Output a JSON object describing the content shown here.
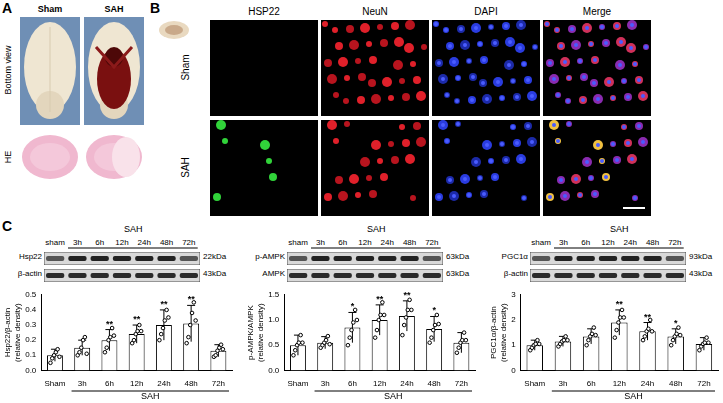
{
  "panels": {
    "A": {
      "label": "A",
      "columns": [
        "Sham",
        "SAH"
      ],
      "rows": [
        "Bottom view",
        "HE"
      ]
    },
    "B": {
      "label": "B",
      "columns": [
        "HSP22",
        "NeuN",
        "DAPI",
        "Merge"
      ],
      "rows": [
        "Sham",
        "SAH"
      ]
    },
    "C": {
      "label": "C",
      "blots": [
        {
          "lanes": [
            "sham",
            "3h",
            "6h",
            "12h",
            "24h",
            "48h",
            "72h"
          ],
          "group_label": "SAH",
          "bands": [
            {
              "name": "Hsp22",
              "size": "22kDa"
            },
            {
              "name": "β-actin",
              "size": "43kDa"
            }
          ]
        },
        {
          "lanes": [
            "sham",
            "3h",
            "6h",
            "12h",
            "24h",
            "48h",
            "72h"
          ],
          "group_label": "SAH",
          "bands": [
            {
              "name": "p-AMPK",
              "size": "63kDa"
            },
            {
              "name": "AMPK",
              "size": "63kDa"
            }
          ]
        },
        {
          "lanes": [
            "sham",
            "3h",
            "6h",
            "12h",
            "24h",
            "48h",
            "72h"
          ],
          "group_label": "SAH",
          "bands": [
            {
              "name": "PGC1α",
              "size": "93kDa"
            },
            {
              "name": "β-actin",
              "size": "43kDa"
            }
          ]
        }
      ]
    }
  },
  "chart_data": [
    {
      "type": "bar",
      "categories": [
        "Sham",
        "3h",
        "6h",
        "12h",
        "24h",
        "48h",
        "72h"
      ],
      "group_label": "SAH",
      "ylabel": [
        "Hsp22/β-actin",
        "(relative density)"
      ],
      "values": [
        0.1,
        0.15,
        0.2,
        0.24,
        0.3,
        0.31,
        0.13
      ],
      "errors": [
        0.04,
        0.05,
        0.07,
        0.06,
        0.1,
        0.12,
        0.04
      ],
      "points": [
        [
          0.05,
          0.08,
          0.1,
          0.12,
          0.14,
          0.09
        ],
        [
          0.1,
          0.12,
          0.15,
          0.2,
          0.22,
          0.11
        ],
        [
          0.12,
          0.15,
          0.2,
          0.22,
          0.28,
          0.23
        ],
        [
          0.18,
          0.2,
          0.24,
          0.26,
          0.3,
          0.26
        ],
        [
          0.2,
          0.24,
          0.28,
          0.33,
          0.4,
          0.35
        ],
        [
          0.18,
          0.22,
          0.3,
          0.38,
          0.45,
          0.33
        ],
        [
          0.09,
          0.1,
          0.13,
          0.15,
          0.17,
          0.14
        ]
      ],
      "significance": [
        "",
        "",
        "**",
        "**",
        "**",
        "**",
        ""
      ],
      "color": "#ffffff",
      "ylim": [
        0,
        0.5
      ],
      "yticks": [
        {
          "value": 0,
          "label": "0.0"
        },
        0.1,
        0.2,
        0.3,
        0.4,
        0.5
      ],
      "grid": false
    },
    {
      "type": "bar",
      "categories": [
        "Sham",
        "3h",
        "6h",
        "12h",
        "24h",
        "48h",
        "72h"
      ],
      "group_label": "SAH",
      "ylabel": [
        "p-AMPK/AMPK",
        "(relative density)"
      ],
      "values": [
        0.5,
        0.55,
        0.85,
        1.0,
        1.08,
        0.82,
        0.55
      ],
      "errors": [
        0.2,
        0.12,
        0.3,
        0.3,
        0.3,
        0.25,
        0.2
      ],
      "points": [
        [
          0.3,
          0.4,
          0.5,
          0.55,
          0.7,
          0.55
        ],
        [
          0.45,
          0.5,
          0.55,
          0.6,
          0.68,
          0.52
        ],
        [
          0.5,
          0.65,
          0.8,
          0.95,
          1.2,
          1.0
        ],
        [
          0.65,
          0.8,
          1.0,
          1.1,
          1.35,
          1.1
        ],
        [
          0.7,
          0.9,
          1.05,
          1.2,
          1.4,
          1.2
        ],
        [
          0.55,
          0.65,
          0.8,
          0.9,
          1.1,
          0.92
        ],
        [
          0.35,
          0.45,
          0.55,
          0.6,
          0.75,
          0.6
        ]
      ],
      "significance": [
        "",
        "",
        "*",
        "**",
        "**",
        "*",
        ""
      ],
      "color": "#ffffff",
      "ylim": [
        0,
        1.5
      ],
      "yticks": [
        {
          "value": 0,
          "label": "0.0"
        },
        0.5,
        {
          "value": 1,
          "label": "1.0"
        },
        1.5
      ],
      "grid": false
    },
    {
      "type": "bar",
      "categories": [
        "Sham",
        "3h",
        "6h",
        "12h",
        "24h",
        "48h",
        "72h"
      ],
      "group_label": "SAH",
      "ylabel": [
        "PGC1α/β-actin",
        "(relative density)"
      ],
      "values": [
        1.0,
        1.15,
        1.35,
        1.9,
        1.55,
        1.35,
        1.05
      ],
      "errors": [
        0.2,
        0.2,
        0.3,
        0.5,
        0.35,
        0.3,
        0.25
      ],
      "points": [
        [
          0.8,
          0.9,
          1.0,
          1.05,
          1.2,
          1.05
        ],
        [
          0.95,
          1.05,
          1.15,
          1.2,
          1.35,
          1.2
        ],
        [
          1.0,
          1.2,
          1.35,
          1.45,
          1.7,
          1.4
        ],
        [
          1.3,
          1.6,
          1.9,
          2.1,
          2.4,
          2.1
        ],
        [
          1.2,
          1.35,
          1.55,
          1.65,
          2.0,
          1.55
        ],
        [
          1.0,
          1.2,
          1.35,
          1.45,
          1.7,
          1.4
        ],
        [
          0.8,
          0.95,
          1.05,
          1.1,
          1.3,
          1.1
        ]
      ],
      "significance": [
        "",
        "",
        "",
        "**",
        "**",
        "*",
        ""
      ],
      "color": "#ffffff",
      "ylim": [
        0,
        3
      ],
      "yticks": [
        0,
        1,
        2,
        3
      ],
      "grid": false
    }
  ]
}
